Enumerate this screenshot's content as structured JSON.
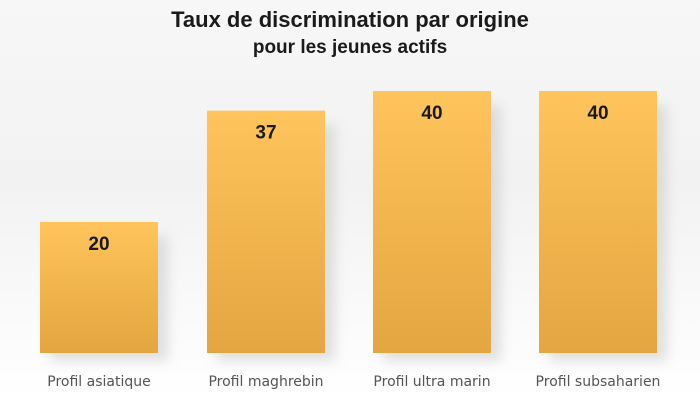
{
  "chart_data": {
    "type": "bar",
    "title": "Taux de discrimination par origine",
    "subtitle": "pour les jeunes actifs",
    "categories": [
      "Profil asiatique",
      "Profil maghrebin",
      "Profil ultra marin",
      "Profil subsaharien"
    ],
    "values": [
      20,
      37,
      40,
      40
    ],
    "data_labels": [
      "20",
      "37",
      "40",
      "40"
    ],
    "ylim": [
      0,
      40
    ],
    "grid": false,
    "legend": "none",
    "xlabel": "",
    "ylabel": ""
  },
  "colors": {
    "bar_top": "#ffc45c",
    "bar_bottom": "#e3a640",
    "shadow": "#c8c8c8"
  }
}
